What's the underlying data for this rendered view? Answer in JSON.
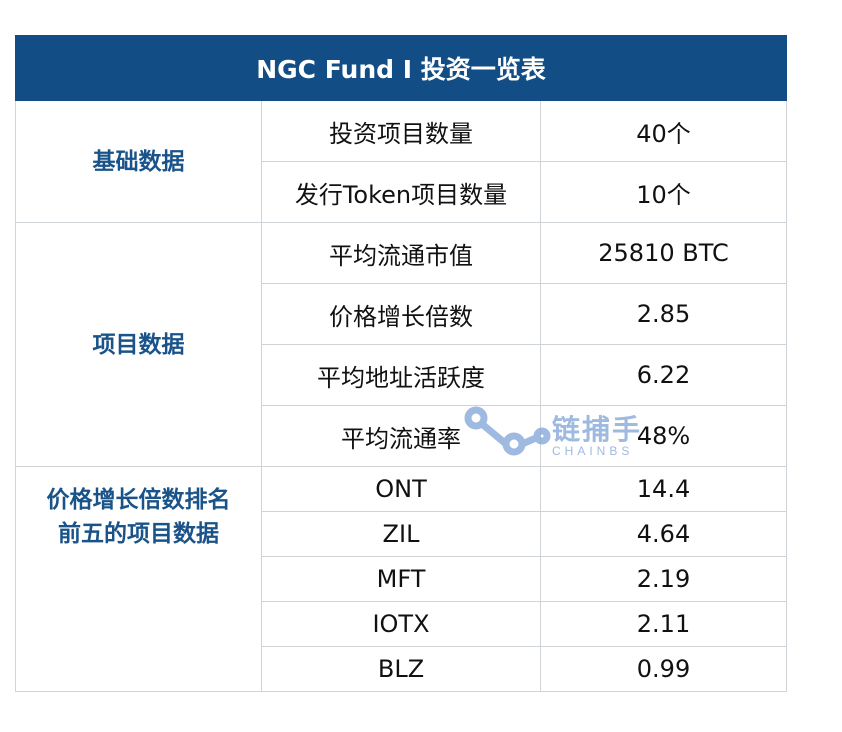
{
  "title": "NGC Fund I 投资一览表",
  "sections": [
    {
      "group": "基础数据",
      "rows": [
        {
          "label": "投资项目数量",
          "value": "40个"
        },
        {
          "label": "发行Token项目数量",
          "value": "10个"
        }
      ]
    },
    {
      "group": "项目数据",
      "rows": [
        {
          "label": "平均流通市值",
          "value": "25810 BTC"
        },
        {
          "label": "价格增长倍数",
          "value": "2.85"
        },
        {
          "label": "平均地址活跃度",
          "value": "6.22"
        },
        {
          "label": "平均流通率",
          "value": "48%"
        }
      ]
    },
    {
      "group": "价格增长倍数排名前五的项目数据",
      "group_line1": "价格增长倍数排名",
      "group_line2": "前五的项目数据",
      "rows": [
        {
          "label": "ONT",
          "value": "14.4"
        },
        {
          "label": "ZIL",
          "value": "4.64"
        },
        {
          "label": "MFT",
          "value": "2.19"
        },
        {
          "label": "IOTX",
          "value": "2.11"
        },
        {
          "label": "BLZ",
          "value": "0.99"
        }
      ]
    }
  ],
  "watermark": {
    "text": "链捕手",
    "subtext": "CHAINBS"
  },
  "colors": {
    "header_bg": "#124e85",
    "group_text": "#1a5389",
    "border": "#cfd4d9",
    "watermark": "#7fa3d6"
  }
}
